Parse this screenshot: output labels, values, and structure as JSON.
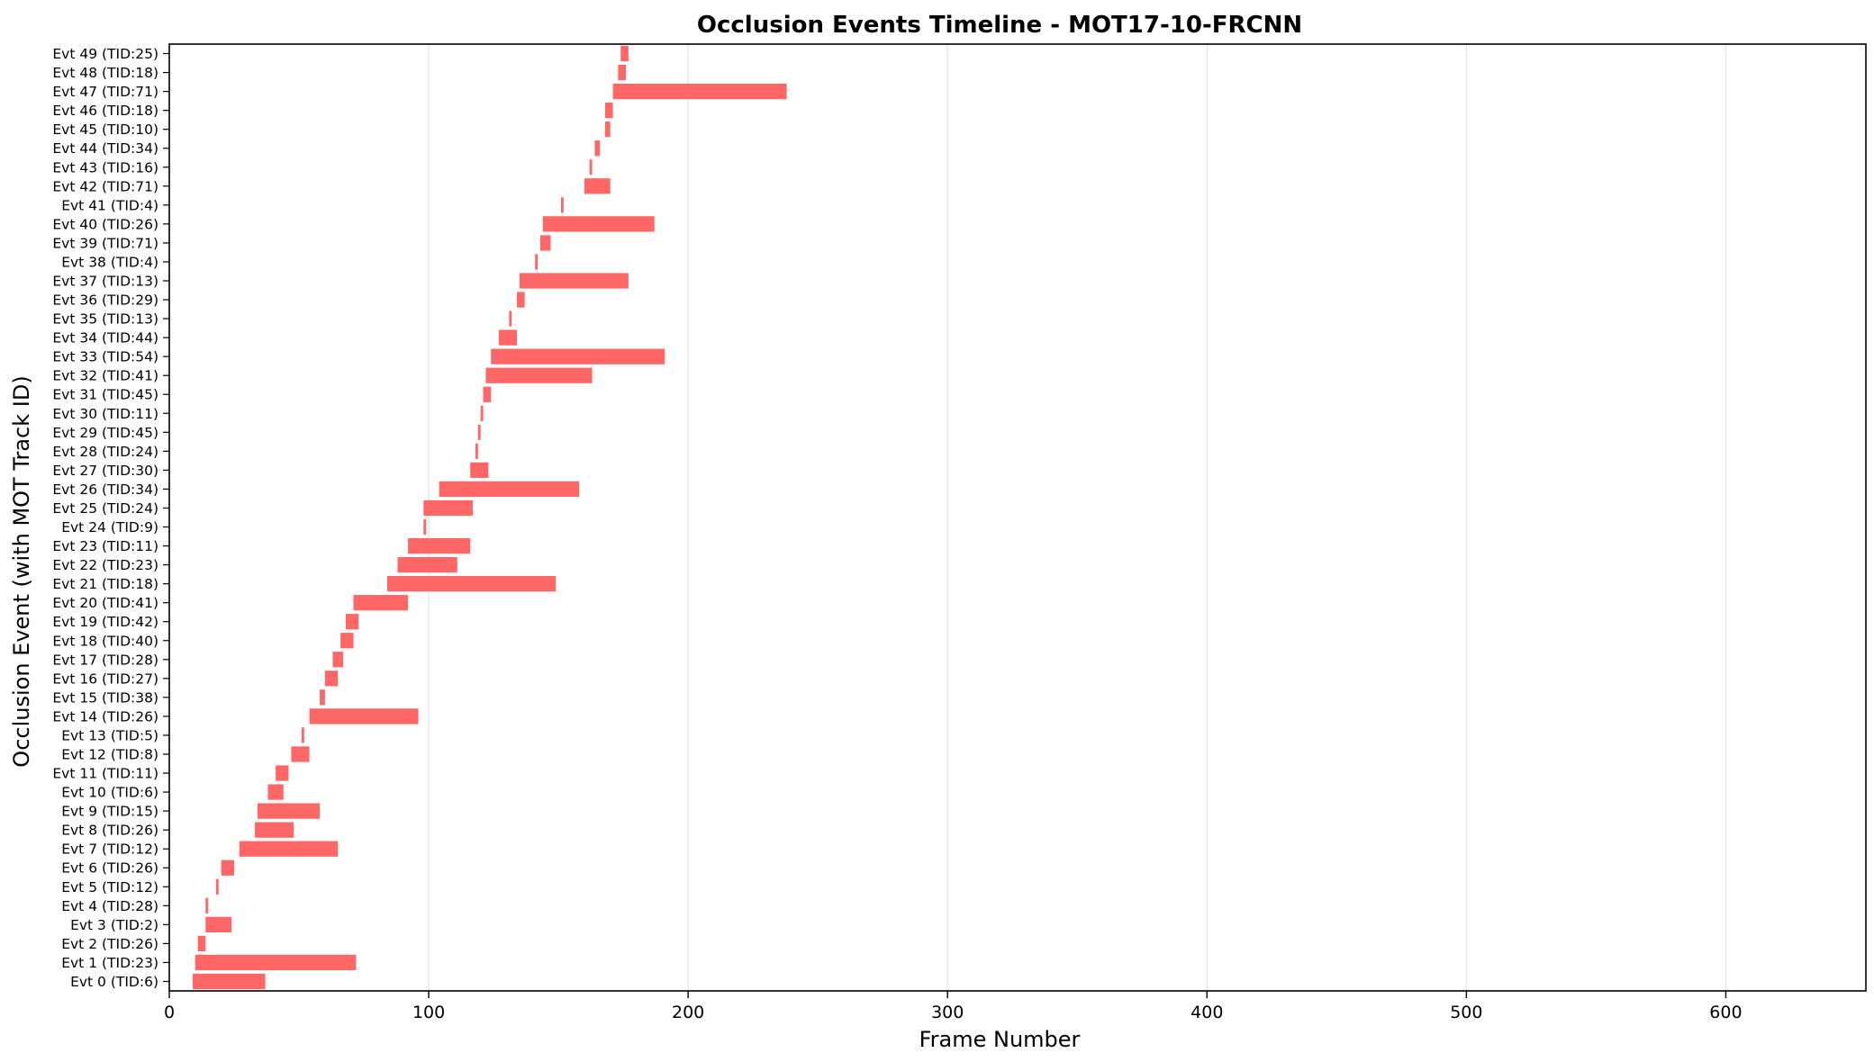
{
  "chart_data": {
    "type": "bar",
    "orientation": "horizontal-range",
    "title": "Occlusion Events Timeline - MOT17-10-FRCNN",
    "xlabel": "Frame Number",
    "ylabel": "Occlusion Event (with MOT Track ID)",
    "xlim": [
      0,
      654
    ],
    "xticks": [
      0,
      100,
      200,
      300,
      400,
      500,
      600
    ],
    "grid": "x",
    "bar_color": "#ff6666",
    "events": [
      {
        "label": "Evt 0 (TID:6)",
        "start": 9,
        "end": 37
      },
      {
        "label": "Evt 1 (TID:23)",
        "start": 10,
        "end": 72
      },
      {
        "label": "Evt 2 (TID:26)",
        "start": 11,
        "end": 14
      },
      {
        "label": "Evt 3 (TID:2)",
        "start": 14,
        "end": 24
      },
      {
        "label": "Evt 4 (TID:28)",
        "start": 14,
        "end": 15
      },
      {
        "label": "Evt 5 (TID:12)",
        "start": 18,
        "end": 19
      },
      {
        "label": "Evt 6 (TID:26)",
        "start": 20,
        "end": 25
      },
      {
        "label": "Evt 7 (TID:12)",
        "start": 27,
        "end": 65
      },
      {
        "label": "Evt 8 (TID:26)",
        "start": 33,
        "end": 48
      },
      {
        "label": "Evt 9 (TID:15)",
        "start": 34,
        "end": 58
      },
      {
        "label": "Evt 10 (TID:6)",
        "start": 38,
        "end": 44
      },
      {
        "label": "Evt 11 (TID:11)",
        "start": 41,
        "end": 46
      },
      {
        "label": "Evt 12 (TID:8)",
        "start": 47,
        "end": 54
      },
      {
        "label": "Evt 13 (TID:5)",
        "start": 51,
        "end": 52
      },
      {
        "label": "Evt 14 (TID:26)",
        "start": 54,
        "end": 96
      },
      {
        "label": "Evt 15 (TID:38)",
        "start": 58,
        "end": 60
      },
      {
        "label": "Evt 16 (TID:27)",
        "start": 60,
        "end": 65
      },
      {
        "label": "Evt 17 (TID:28)",
        "start": 63,
        "end": 67
      },
      {
        "label": "Evt 18 (TID:40)",
        "start": 66,
        "end": 71
      },
      {
        "label": "Evt 19 (TID:42)",
        "start": 68,
        "end": 73
      },
      {
        "label": "Evt 20 (TID:41)",
        "start": 71,
        "end": 92
      },
      {
        "label": "Evt 21 (TID:18)",
        "start": 84,
        "end": 149
      },
      {
        "label": "Evt 22 (TID:23)",
        "start": 88,
        "end": 111
      },
      {
        "label": "Evt 23 (TID:11)",
        "start": 92,
        "end": 116
      },
      {
        "label": "Evt 24 (TID:9)",
        "start": 98,
        "end": 99
      },
      {
        "label": "Evt 25 (TID:24)",
        "start": 98,
        "end": 117
      },
      {
        "label": "Evt 26 (TID:34)",
        "start": 104,
        "end": 158
      },
      {
        "label": "Evt 27 (TID:30)",
        "start": 116,
        "end": 123
      },
      {
        "label": "Evt 28 (TID:24)",
        "start": 118,
        "end": 119
      },
      {
        "label": "Evt 29 (TID:45)",
        "start": 119,
        "end": 120
      },
      {
        "label": "Evt 30 (TID:11)",
        "start": 120,
        "end": 121
      },
      {
        "label": "Evt 31 (TID:45)",
        "start": 121,
        "end": 124
      },
      {
        "label": "Evt 32 (TID:41)",
        "start": 122,
        "end": 163
      },
      {
        "label": "Evt 33 (TID:54)",
        "start": 124,
        "end": 191
      },
      {
        "label": "Evt 34 (TID:44)",
        "start": 127,
        "end": 134
      },
      {
        "label": "Evt 35 (TID:13)",
        "start": 131,
        "end": 132
      },
      {
        "label": "Evt 36 (TID:29)",
        "start": 134,
        "end": 137
      },
      {
        "label": "Evt 37 (TID:13)",
        "start": 135,
        "end": 177
      },
      {
        "label": "Evt 38 (TID:4)",
        "start": 141,
        "end": 142
      },
      {
        "label": "Evt 39 (TID:71)",
        "start": 143,
        "end": 147
      },
      {
        "label": "Evt 40 (TID:26)",
        "start": 144,
        "end": 187
      },
      {
        "label": "Evt 41 (TID:4)",
        "start": 151,
        "end": 152
      },
      {
        "label": "Evt 42 (TID:71)",
        "start": 160,
        "end": 170
      },
      {
        "label": "Evt 43 (TID:16)",
        "start": 162,
        "end": 163
      },
      {
        "label": "Evt 44 (TID:34)",
        "start": 164,
        "end": 166
      },
      {
        "label": "Evt 45 (TID:10)",
        "start": 168,
        "end": 170
      },
      {
        "label": "Evt 46 (TID:18)",
        "start": 168,
        "end": 171
      },
      {
        "label": "Evt 47 (TID:71)",
        "start": 171,
        "end": 238
      },
      {
        "label": "Evt 48 (TID:18)",
        "start": 173,
        "end": 176
      },
      {
        "label": "Evt 49 (TID:25)",
        "start": 174,
        "end": 177
      }
    ]
  }
}
